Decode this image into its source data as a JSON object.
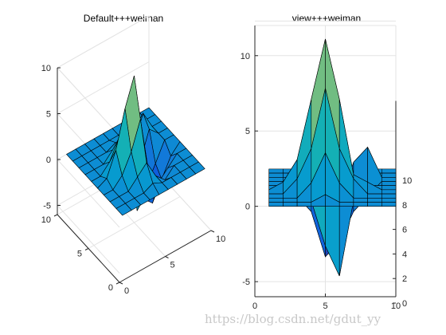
{
  "chart_data": [
    {
      "type": "surface",
      "view": "default-3d",
      "title": "Default+++weiman",
      "xlim": [
        0,
        10
      ],
      "ylim": [
        0,
        10
      ],
      "zlim": [
        -6,
        10
      ],
      "x_ticks": [
        "0",
        "5",
        "10"
      ],
      "y_ticks": [
        "0",
        "5",
        "10"
      ],
      "z_ticks": [
        "-5",
        "0",
        "5",
        "10"
      ],
      "grid": true,
      "colormap": "parula"
    },
    {
      "type": "surface",
      "view": "rotated",
      "title": "view+++weiman",
      "xlim": [
        0,
        10
      ],
      "zlim": [
        -6,
        10
      ],
      "x_ticks": [
        "0",
        "5",
        "10"
      ],
      "z_ticks": [
        "-5",
        "0",
        "5",
        "10"
      ],
      "y_ticks": [
        "0",
        "2",
        "4",
        "6",
        "8",
        "10"
      ],
      "grid": true,
      "colormap": "parula"
    }
  ],
  "surface_data": {
    "x": [
      1,
      2,
      3,
      4,
      5,
      6,
      7,
      8,
      9,
      10
    ],
    "y": [
      1,
      2,
      3,
      4,
      5,
      6,
      7,
      8,
      9,
      10
    ],
    "z": [
      [
        0,
        0,
        0,
        0,
        0,
        0,
        0,
        0,
        0,
        0
      ],
      [
        0,
        0,
        0,
        0,
        0.5,
        0,
        0,
        0,
        0,
        0
      ],
      [
        0,
        0,
        0,
        1,
        3,
        1,
        0,
        0,
        0,
        0
      ],
      [
        0,
        0,
        1,
        3,
        7,
        3,
        1,
        0,
        0,
        0
      ],
      [
        0,
        0.5,
        2,
        6,
        10,
        6,
        1,
        0.5,
        0,
        0
      ],
      [
        0,
        0,
        0,
        -1,
        -4,
        -6,
        -1,
        0,
        0,
        0
      ],
      [
        0,
        0,
        -1,
        -2,
        -5,
        -4,
        -2,
        -1,
        0,
        0
      ],
      [
        0,
        0,
        0,
        -1,
        -3,
        -2,
        1,
        2,
        0,
        0
      ],
      [
        0,
        0,
        0,
        0,
        -1,
        0,
        0,
        0,
        0,
        0
      ],
      [
        0,
        0,
        0,
        0,
        0,
        0,
        0,
        0,
        0,
        0
      ]
    ]
  },
  "watermark": "https://blog.csdn.net/gdut_yy"
}
